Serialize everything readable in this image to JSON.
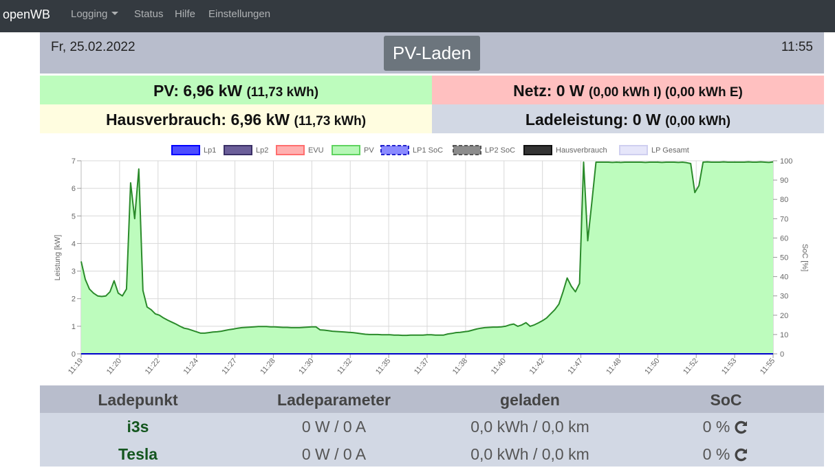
{
  "navbar": {
    "brand": "openWB",
    "items": [
      {
        "label": "Logging",
        "dropdown": true
      },
      {
        "label": "Status"
      },
      {
        "label": "Hilfe"
      },
      {
        "label": "Einstellungen"
      }
    ]
  },
  "header": {
    "date": "Fr, 25.02.2022",
    "mode": "PV-Laden",
    "time": "11:55"
  },
  "summary": {
    "pv": {
      "label": "PV: 6,96 kW",
      "sub": "(11,73 kWh)",
      "color": "#bdfcbd"
    },
    "netz": {
      "label": "Netz: 0 W",
      "sub": "(0,00 kWh I) (0,00 kWh E)",
      "color": "#ffc0c0"
    },
    "haus": {
      "label": "Hausverbrauch: 6,96 kW",
      "sub": "(11,73 kWh)",
      "color": "#fffde0"
    },
    "lade": {
      "label": "Ladeleistung: 0 W",
      "sub": "(0,00 kWh)",
      "color": "#d2d8e4"
    }
  },
  "chart_data": {
    "type": "area",
    "ylabel": "Leistung [kW]",
    "y2label": "SoC [%]",
    "ylim": [
      0,
      7
    ],
    "y2lim": [
      0,
      100
    ],
    "yticks": [
      "0",
      "1",
      "2",
      "3",
      "4",
      "5",
      "6",
      "7"
    ],
    "y2ticks": [
      "0",
      "10",
      "20",
      "30",
      "40",
      "50",
      "60",
      "70",
      "80",
      "90",
      "100"
    ],
    "xticks": [
      "11:19",
      "11:20",
      "11:22",
      "11:24",
      "11:27",
      "11:28",
      "11:30",
      "11:32",
      "11:35",
      "11:37",
      "11:38",
      "11:40",
      "11:42",
      "11:47",
      "11:48",
      "11:50",
      "11:52",
      "11:53",
      "11:55"
    ],
    "legend": [
      {
        "name": "Lp1",
        "fill": "#4d4dff",
        "stroke": "#0000ff",
        "dash": false
      },
      {
        "name": "Lp2",
        "fill": "#6b5e99",
        "stroke": "#3a2f66",
        "dash": false
      },
      {
        "name": "EVU",
        "fill": "#ffb0b0",
        "stroke": "#ff6e6e",
        "dash": false
      },
      {
        "name": "PV",
        "fill": "#b6f7b6",
        "stroke": "#5fd35f",
        "dash": false
      },
      {
        "name": "LP1 SoC",
        "fill": "#8a8aff",
        "stroke": "#2222cc",
        "dash": true
      },
      {
        "name": "LP2 SoC",
        "fill": "#8c8c8c",
        "stroke": "#555555",
        "dash": true
      },
      {
        "name": "Hausverbrauch",
        "fill": "#333333",
        "stroke": "#111111",
        "dash": false
      },
      {
        "name": "LP Gesamt",
        "fill": "#e6e6fa",
        "stroke": "#cfcff0",
        "dash": false
      }
    ],
    "series": [
      {
        "name": "PV",
        "color": "#2a8a2a",
        "fill": "#bdfcbd",
        "values": [
          3.35,
          2.7,
          2.35,
          2.2,
          2.1,
          2.08,
          2.1,
          2.25,
          2.65,
          2.2,
          2.1,
          2.35,
          6.2,
          4.9,
          6.7,
          2.3,
          1.7,
          1.6,
          1.45,
          1.4,
          1.3,
          1.22,
          1.15,
          1.08,
          1.0,
          0.93,
          0.9,
          0.85,
          0.8,
          0.75,
          0.75,
          0.77,
          0.79,
          0.8,
          0.82,
          0.85,
          0.88,
          0.9,
          0.93,
          0.95,
          0.96,
          0.97,
          0.98,
          0.99,
          0.99,
          0.99,
          0.98,
          0.98,
          0.97,
          0.96,
          0.96,
          0.95,
          0.95,
          0.95,
          0.96,
          0.97,
          0.98,
          0.98,
          0.87,
          0.86,
          0.84,
          0.82,
          0.81,
          0.8,
          0.79,
          0.78,
          0.77,
          0.75,
          0.73,
          0.71,
          0.7,
          0.7,
          0.7,
          0.69,
          0.69,
          0.69,
          0.68,
          0.68,
          0.67,
          0.67,
          0.68,
          0.68,
          0.68,
          0.68,
          0.69,
          0.69,
          0.68,
          0.68,
          0.68,
          0.72,
          0.74,
          0.77,
          0.78,
          0.8,
          0.82,
          0.86,
          0.9,
          0.93,
          0.95,
          0.96,
          0.97,
          0.97,
          0.98,
          1.0,
          1.05,
          1.08,
          1.0,
          1.05,
          1.13,
          1.0,
          1.05,
          1.12,
          1.2,
          1.3,
          1.45,
          1.6,
          1.8,
          2.25,
          2.75,
          2.45,
          2.25,
          2.55,
          6.95,
          4.1,
          5.5,
          6.95,
          6.95,
          6.95,
          6.95,
          6.94,
          6.95,
          6.94,
          6.95,
          6.95,
          6.95,
          6.95,
          6.95,
          6.94,
          6.95,
          6.95,
          6.95,
          6.94,
          6.95,
          6.95,
          6.95,
          6.94,
          6.95,
          6.93,
          6.9,
          5.85,
          6.1,
          6.95,
          6.96,
          6.95,
          6.95,
          6.95,
          6.96,
          6.95,
          6.95,
          6.95,
          6.95,
          6.95,
          6.96,
          6.95,
          6.95,
          6.96,
          6.95,
          6.94,
          6.96
        ]
      },
      {
        "name": "Lp1",
        "color": "#0000cc",
        "values": [
          0,
          0
        ]
      }
    ]
  },
  "table": {
    "headers": [
      "Ladepunkt",
      "Ladeparameter",
      "geladen",
      "SoC"
    ],
    "rows": [
      {
        "name": "i3s",
        "param": "0 W / 0 A",
        "charged": "0,0 kWh / 0,0 km",
        "soc": "0 %"
      },
      {
        "name": "Tesla",
        "param": "0 W / 0 A",
        "charged": "0,0 kWh / 0,0 km",
        "soc": "0 %"
      }
    ]
  }
}
